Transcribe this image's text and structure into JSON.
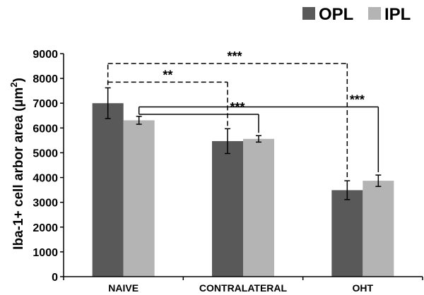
{
  "chart_data": {
    "type": "bar",
    "categories": [
      "NAIVE",
      "CONTRALATERAL",
      "OHT"
    ],
    "series": [
      {
        "name": "OPL",
        "color": "#595959",
        "values": [
          7000,
          5470,
          3490
        ],
        "errors": [
          620,
          500,
          380
        ]
      },
      {
        "name": "IPL",
        "color": "#b4b4b4",
        "values": [
          6310,
          5560,
          3870
        ],
        "errors": [
          160,
          130,
          230
        ]
      }
    ],
    "ylabel": "Iba-1+ cell arbor area (µm²)",
    "ylabel_main": "Iba-1+ cell arbor area (µm",
    "ylabel_sup": "2",
    "ylabel_end": ")",
    "ylim": [
      0,
      9000
    ],
    "yticks": [
      "0",
      "1000",
      "2000",
      "3000",
      "4000",
      "5000",
      "6000",
      "7000",
      "8000",
      "9000"
    ],
    "grid": false,
    "legend_position": "top-right",
    "significance": [
      {
        "label": "***",
        "from": "NAIVE-OPL",
        "to": "OHT-OPL",
        "style": "dashed",
        "level": 8600
      },
      {
        "label": "**",
        "from": "NAIVE-OPL",
        "to": "CONTRALATERAL-OPL",
        "style": "dashed",
        "level": 7850
      },
      {
        "label": "***",
        "from": "NAIVE-IPL",
        "to": "OHT-IPL",
        "style": "solid",
        "level": 6850
      },
      {
        "label": "***",
        "from": "NAIVE-IPL",
        "to": "CONTRALATERAL-IPL",
        "style": "solid",
        "level": 6550
      }
    ]
  }
}
